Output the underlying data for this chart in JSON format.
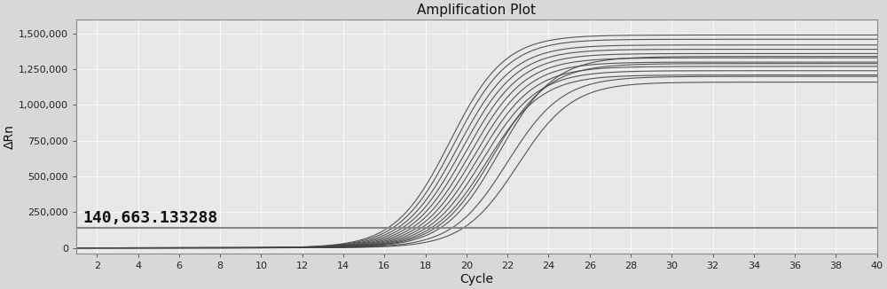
{
  "title": "Amplification Plot",
  "xlabel": "Cycle",
  "ylabel": "ΔRn",
  "xlim": [
    1,
    40
  ],
  "ylim": [
    -40000,
    1600000
  ],
  "yticks": [
    0,
    250000,
    500000,
    750000,
    1000000,
    1250000,
    1500000
  ],
  "xticks": [
    2,
    4,
    6,
    8,
    10,
    12,
    14,
    16,
    18,
    20,
    22,
    24,
    26,
    28,
    30,
    32,
    34,
    36,
    38,
    40
  ],
  "threshold": 140663.133288,
  "threshold_label": "140,663.133288",
  "background_color": "#d8d8d8",
  "plot_bg_color": "#e8e8e8",
  "grid_color": "#ffffff",
  "line_color": "#444444",
  "threshold_color": "#888888",
  "n_curves": 14,
  "curve_midpoints": [
    19.2,
    19.4,
    19.6,
    19.8,
    20.0,
    20.2,
    20.4,
    20.6,
    20.8,
    21.0,
    21.3,
    21.6,
    22.0,
    22.5
  ],
  "curve_plateaus": [
    1490000,
    1460000,
    1420000,
    1390000,
    1360000,
    1330000,
    1300000,
    1270000,
    1240000,
    1210000,
    1290000,
    1340000,
    1200000,
    1160000
  ],
  "curve_steepness": 0.75,
  "title_fontsize": 11,
  "axis_label_fontsize": 10,
  "tick_fontsize": 8,
  "annotation_fontsize": 13,
  "annotation_fontweight": "bold"
}
